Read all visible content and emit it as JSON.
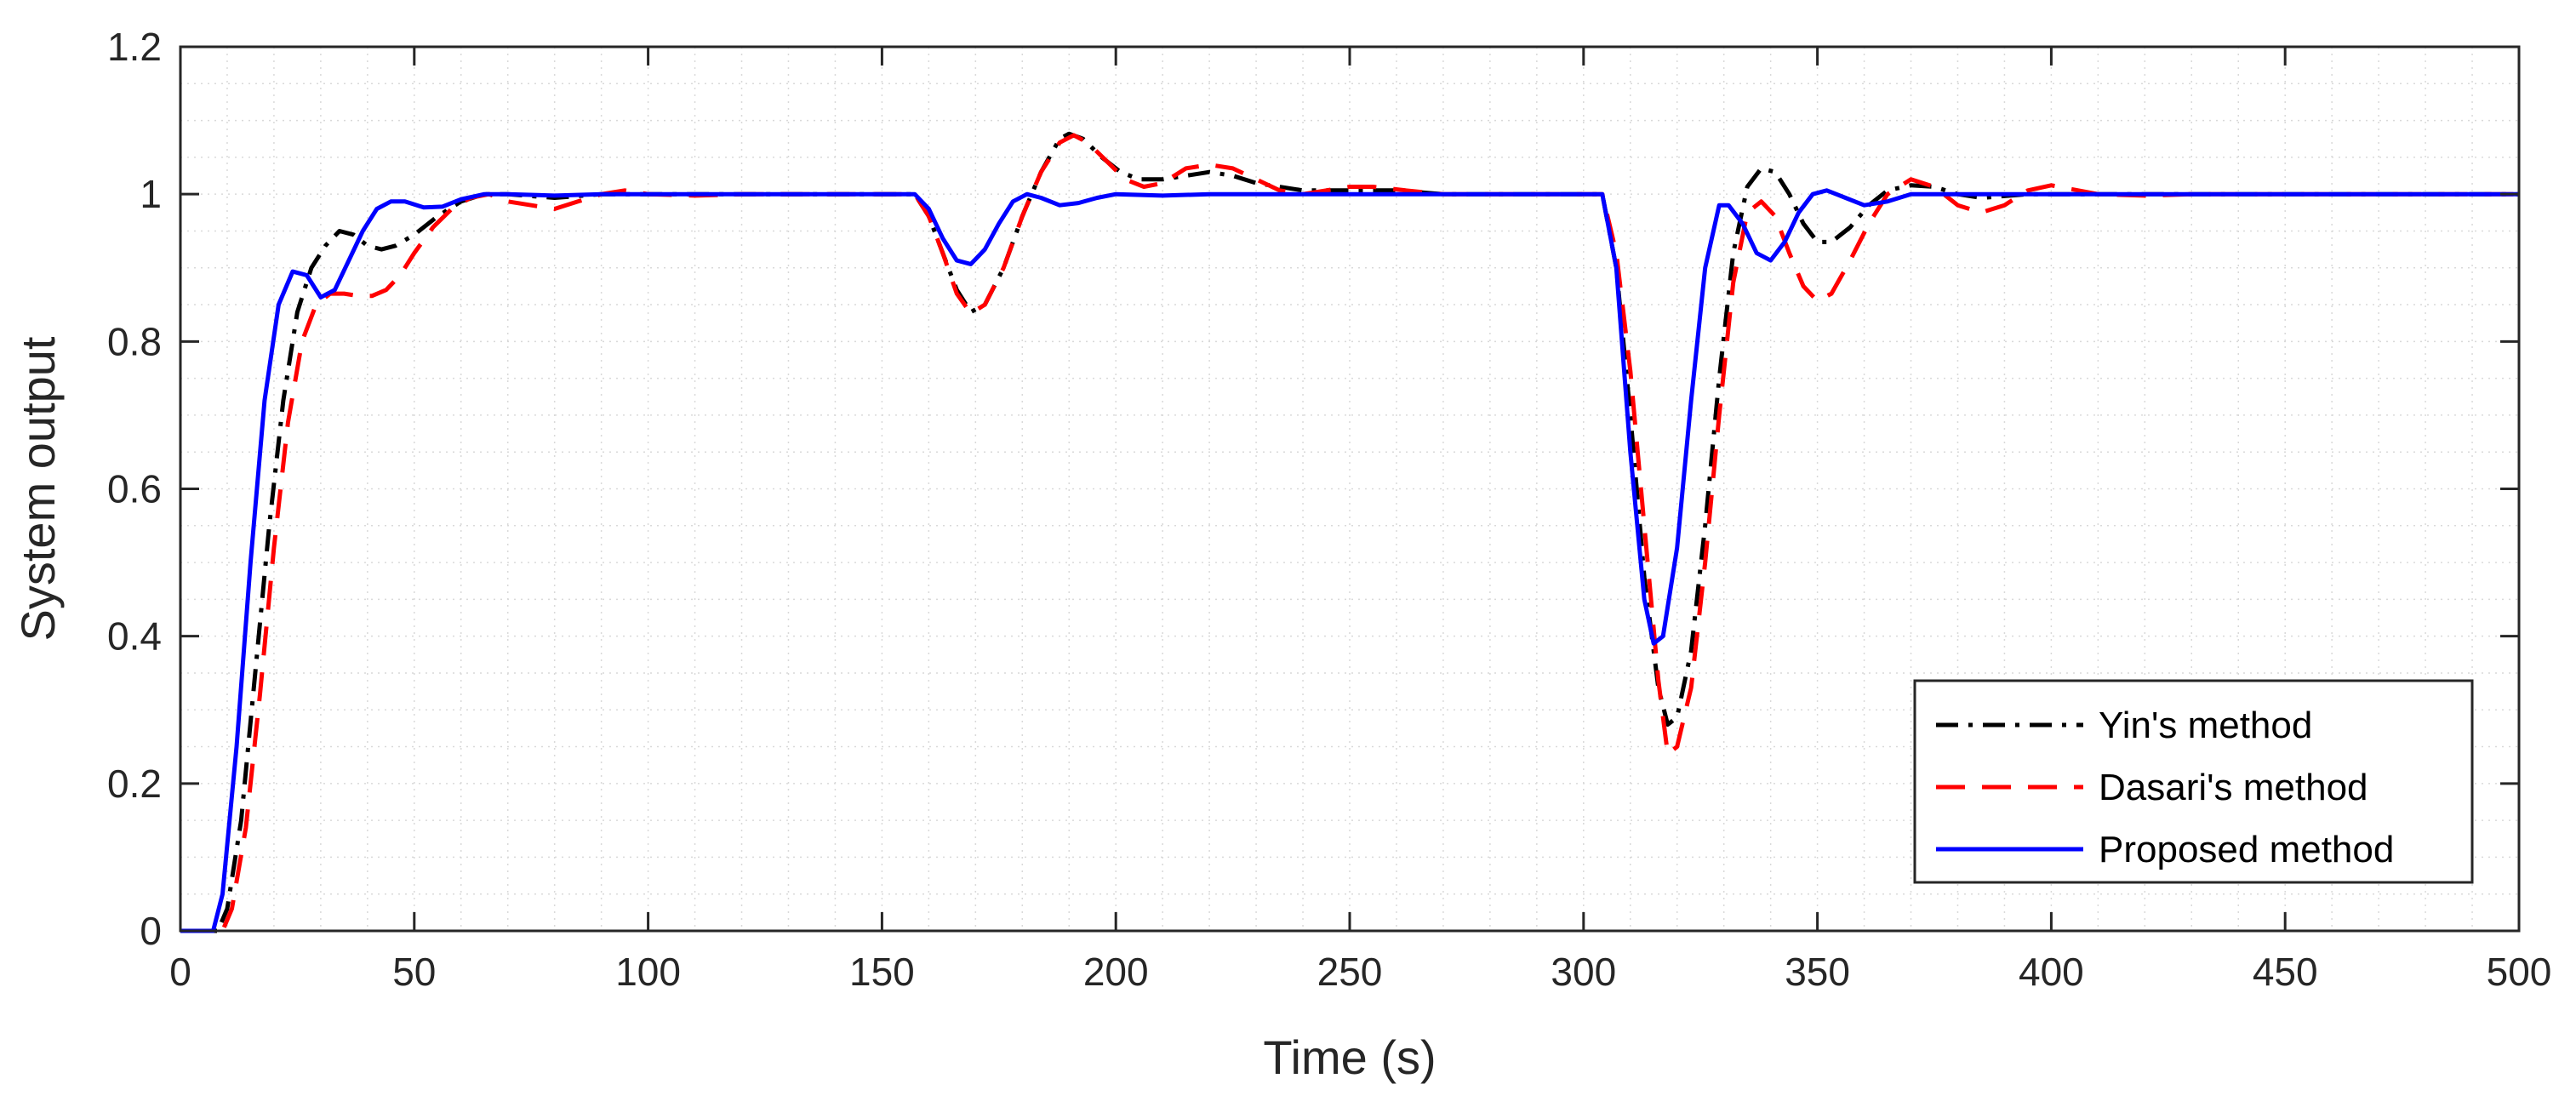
{
  "chart_data": {
    "type": "line",
    "xlabel": "Time (s)",
    "ylabel": "System output",
    "xlim": [
      0,
      500
    ],
    "ylim": [
      0,
      1.2
    ],
    "xticks": [
      0,
      50,
      100,
      150,
      200,
      250,
      300,
      350,
      400,
      450,
      500
    ],
    "xtick_labels": [
      "0",
      "50",
      "100",
      "150",
      "200",
      "250",
      "300",
      "350",
      "400",
      "450",
      "500"
    ],
    "yticks": [
      0,
      0.2,
      0.4,
      0.6,
      0.8,
      1,
      1.2
    ],
    "ytick_labels": [
      "0",
      "0.2",
      "0.4",
      "0.6",
      "0.8",
      "1",
      "1.2"
    ],
    "grid": "minor dotted",
    "legend_position": "bottom-right",
    "series": [
      {
        "name": "Yin's method",
        "color": "#000000",
        "style": "dashdot",
        "points": [
          [
            0,
            0
          ],
          [
            8,
            0
          ],
          [
            10,
            0.03
          ],
          [
            13,
            0.15
          ],
          [
            16,
            0.35
          ],
          [
            19,
            0.55
          ],
          [
            22,
            0.72
          ],
          [
            25,
            0.84
          ],
          [
            28,
            0.9
          ],
          [
            31,
            0.93
          ],
          [
            34,
            0.95
          ],
          [
            37,
            0.945
          ],
          [
            40,
            0.93
          ],
          [
            43,
            0.925
          ],
          [
            46,
            0.93
          ],
          [
            50,
            0.945
          ],
          [
            55,
            0.97
          ],
          [
            60,
            0.99
          ],
          [
            65,
            1.0
          ],
          [
            70,
            1.0
          ],
          [
            80,
            0.995
          ],
          [
            90,
            1.0
          ],
          [
            100,
            1.0
          ],
          [
            120,
            1.0
          ],
          [
            140,
            1.0
          ],
          [
            157,
            1.0
          ],
          [
            160,
            0.97
          ],
          [
            163,
            0.92
          ],
          [
            166,
            0.87
          ],
          [
            169,
            0.84
          ],
          [
            172,
            0.85
          ],
          [
            176,
            0.9
          ],
          [
            180,
            0.97
          ],
          [
            184,
            1.03
          ],
          [
            188,
            1.075
          ],
          [
            190,
            1.082
          ],
          [
            193,
            1.075
          ],
          [
            197,
            1.05
          ],
          [
            201,
            1.03
          ],
          [
            205,
            1.02
          ],
          [
            210,
            1.02
          ],
          [
            215,
            1.025
          ],
          [
            220,
            1.03
          ],
          [
            225,
            1.025
          ],
          [
            230,
            1.015
          ],
          [
            240,
            1.005
          ],
          [
            250,
            1.005
          ],
          [
            260,
            1.005
          ],
          [
            270,
            1.0
          ],
          [
            290,
            1.0
          ],
          [
            304,
            1.0
          ],
          [
            307,
            0.9
          ],
          [
            310,
            0.7
          ],
          [
            313,
            0.48
          ],
          [
            316,
            0.33
          ],
          [
            318,
            0.28
          ],
          [
            320,
            0.29
          ],
          [
            323,
            0.38
          ],
          [
            326,
            0.55
          ],
          [
            329,
            0.75
          ],
          [
            332,
            0.92
          ],
          [
            335,
            1.01
          ],
          [
            338,
            1.035
          ],
          [
            341,
            1.03
          ],
          [
            344,
            1.0
          ],
          [
            347,
            0.96
          ],
          [
            350,
            0.935
          ],
          [
            353,
            0.935
          ],
          [
            357,
            0.955
          ],
          [
            361,
            0.985
          ],
          [
            365,
            1.005
          ],
          [
            370,
            1.012
          ],
          [
            375,
            1.01
          ],
          [
            380,
            1.0
          ],
          [
            385,
            0.995
          ],
          [
            395,
            1.0
          ],
          [
            420,
            1.0
          ],
          [
            450,
            1.0
          ],
          [
            500,
            1.0
          ]
        ]
      },
      {
        "name": "Dasari's method",
        "color": "#ff0000",
        "style": "dashed",
        "points": [
          [
            0,
            0
          ],
          [
            9,
            0
          ],
          [
            11,
            0.03
          ],
          [
            14,
            0.14
          ],
          [
            17,
            0.32
          ],
          [
            20,
            0.52
          ],
          [
            23,
            0.69
          ],
          [
            26,
            0.8
          ],
          [
            29,
            0.85
          ],
          [
            32,
            0.865
          ],
          [
            35,
            0.865
          ],
          [
            38,
            0.862
          ],
          [
            41,
            0.862
          ],
          [
            44,
            0.87
          ],
          [
            47,
            0.89
          ],
          [
            50,
            0.92
          ],
          [
            54,
            0.955
          ],
          [
            58,
            0.98
          ],
          [
            62,
            0.995
          ],
          [
            66,
            1.0
          ],
          [
            70,
            0.99
          ],
          [
            75,
            0.985
          ],
          [
            80,
            0.98
          ],
          [
            85,
            0.99
          ],
          [
            90,
            1.0
          ],
          [
            95,
            1.005
          ],
          [
            100,
            1.0
          ],
          [
            110,
            0.998
          ],
          [
            120,
            1.0
          ],
          [
            140,
            1.0
          ],
          [
            157,
            1.0
          ],
          [
            160,
            0.97
          ],
          [
            163,
            0.92
          ],
          [
            166,
            0.865
          ],
          [
            169,
            0.838
          ],
          [
            172,
            0.85
          ],
          [
            176,
            0.9
          ],
          [
            180,
            0.97
          ],
          [
            184,
            1.03
          ],
          [
            188,
            1.07
          ],
          [
            191,
            1.08
          ],
          [
            194,
            1.07
          ],
          [
            198,
            1.045
          ],
          [
            202,
            1.02
          ],
          [
            206,
            1.01
          ],
          [
            210,
            1.015
          ],
          [
            215,
            1.035
          ],
          [
            220,
            1.04
          ],
          [
            225,
            1.035
          ],
          [
            230,
            1.02
          ],
          [
            235,
            1.005
          ],
          [
            240,
            1.0
          ],
          [
            245,
            1.005
          ],
          [
            250,
            1.01
          ],
          [
            255,
            1.01
          ],
          [
            262,
            1.005
          ],
          [
            270,
            1.0
          ],
          [
            290,
            1.0
          ],
          [
            304,
            1.0
          ],
          [
            307,
            0.92
          ],
          [
            310,
            0.76
          ],
          [
            313,
            0.55
          ],
          [
            316,
            0.34
          ],
          [
            318,
            0.24
          ],
          [
            320,
            0.25
          ],
          [
            323,
            0.33
          ],
          [
            326,
            0.5
          ],
          [
            329,
            0.7
          ],
          [
            332,
            0.88
          ],
          [
            335,
            0.975
          ],
          [
            338,
            0.99
          ],
          [
            341,
            0.97
          ],
          [
            344,
            0.92
          ],
          [
            347,
            0.875
          ],
          [
            350,
            0.855
          ],
          [
            353,
            0.865
          ],
          [
            357,
            0.91
          ],
          [
            361,
            0.96
          ],
          [
            365,
            1.0
          ],
          [
            370,
            1.02
          ],
          [
            375,
            1.01
          ],
          [
            380,
            0.985
          ],
          [
            385,
            0.975
          ],
          [
            390,
            0.985
          ],
          [
            395,
            1.005
          ],
          [
            400,
            1.012
          ],
          [
            410,
            1.0
          ],
          [
            420,
            0.998
          ],
          [
            430,
            1.0
          ],
          [
            500,
            1.0
          ]
        ]
      },
      {
        "name": "Proposed method",
        "color": "#0000ff",
        "style": "solid",
        "points": [
          [
            0,
            0
          ],
          [
            7,
            0
          ],
          [
            9,
            0.05
          ],
          [
            12,
            0.25
          ],
          [
            15,
            0.5
          ],
          [
            18,
            0.72
          ],
          [
            21,
            0.85
          ],
          [
            24,
            0.895
          ],
          [
            27,
            0.89
          ],
          [
            30,
            0.86
          ],
          [
            33,
            0.87
          ],
          [
            36,
            0.91
          ],
          [
            39,
            0.95
          ],
          [
            42,
            0.98
          ],
          [
            45,
            0.99
          ],
          [
            48,
            0.99
          ],
          [
            52,
            0.982
          ],
          [
            56,
            0.983
          ],
          [
            60,
            0.993
          ],
          [
            65,
            1.0
          ],
          [
            70,
            1.0
          ],
          [
            80,
            0.998
          ],
          [
            90,
            1.0
          ],
          [
            120,
            1.0
          ],
          [
            140,
            1.0
          ],
          [
            157,
            1.0
          ],
          [
            160,
            0.98
          ],
          [
            163,
            0.94
          ],
          [
            166,
            0.91
          ],
          [
            169,
            0.905
          ],
          [
            172,
            0.925
          ],
          [
            175,
            0.96
          ],
          [
            178,
            0.99
          ],
          [
            181,
            1.0
          ],
          [
            184,
            0.995
          ],
          [
            188,
            0.985
          ],
          [
            192,
            0.988
          ],
          [
            196,
            0.995
          ],
          [
            200,
            1.0
          ],
          [
            210,
            0.998
          ],
          [
            220,
            1.0
          ],
          [
            250,
            1.0
          ],
          [
            280,
            1.0
          ],
          [
            304,
            1.0
          ],
          [
            307,
            0.9
          ],
          [
            310,
            0.65
          ],
          [
            313,
            0.45
          ],
          [
            315,
            0.39
          ],
          [
            317,
            0.4
          ],
          [
            320,
            0.52
          ],
          [
            323,
            0.72
          ],
          [
            326,
            0.9
          ],
          [
            329,
            0.985
          ],
          [
            331,
            0.985
          ],
          [
            334,
            0.96
          ],
          [
            337,
            0.92
          ],
          [
            340,
            0.91
          ],
          [
            343,
            0.935
          ],
          [
            346,
            0.975
          ],
          [
            349,
            1.0
          ],
          [
            352,
            1.005
          ],
          [
            356,
            0.995
          ],
          [
            360,
            0.985
          ],
          [
            365,
            0.99
          ],
          [
            370,
            1.0
          ],
          [
            380,
            1.0
          ],
          [
            400,
            1.0
          ],
          [
            500,
            1.0
          ]
        ]
      }
    ]
  }
}
